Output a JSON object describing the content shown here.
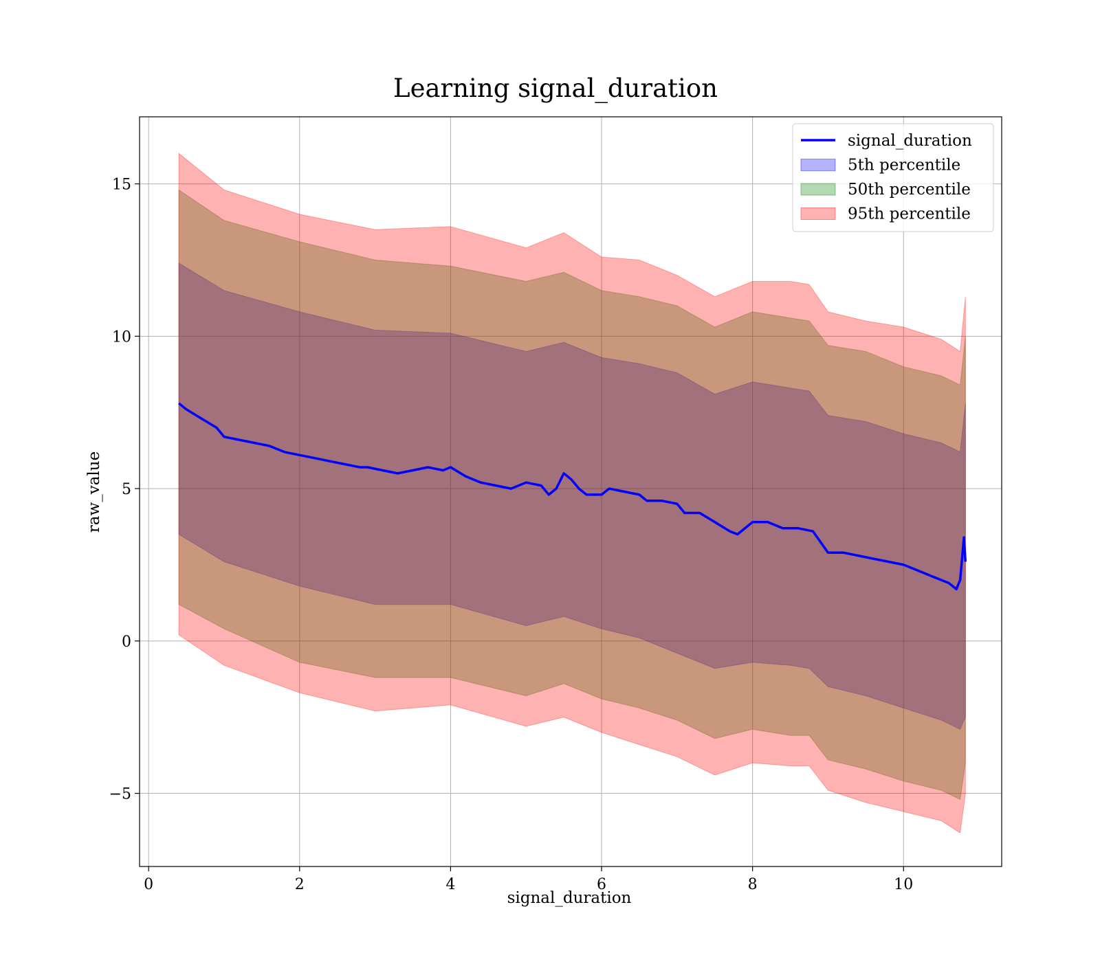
{
  "chart_data": {
    "type": "line",
    "title": "Learning signal_duration",
    "xlabel": "signal_duration",
    "ylabel": "raw_value",
    "xlim": [
      -0.12,
      11.3
    ],
    "ylim": [
      -7.4,
      17.2
    ],
    "xticks": [
      0,
      2,
      4,
      6,
      8,
      10
    ],
    "xtick_labels": [
      "0",
      "2",
      "4",
      "6",
      "8",
      "10"
    ],
    "yticks": [
      -5,
      0,
      5,
      10,
      15
    ],
    "ytick_labels": [
      "−5",
      "0",
      "5",
      "10",
      "15"
    ],
    "grid": true,
    "legend_position": "upper right",
    "colors": {
      "line": "#0000ff",
      "band_5": "#0000ff",
      "band_50": "#008000",
      "band_95": "#ff0000"
    },
    "band_alpha": 0.3,
    "series": [
      {
        "name": "signal_duration",
        "kind": "line",
        "x": [
          0.4,
          0.5,
          0.7,
          0.9,
          1.0,
          1.2,
          1.4,
          1.6,
          1.8,
          2.0,
          2.2,
          2.4,
          2.6,
          2.8,
          2.9,
          3.1,
          3.3,
          3.5,
          3.7,
          3.9,
          4.0,
          4.2,
          4.4,
          4.6,
          4.8,
          5.0,
          5.2,
          5.3,
          5.4,
          5.5,
          5.6,
          5.7,
          5.8,
          6.0,
          6.1,
          6.3,
          6.5,
          6.6,
          6.8,
          7.0,
          7.1,
          7.3,
          7.5,
          7.7,
          7.8,
          8.0,
          8.2,
          8.4,
          8.6,
          8.8,
          9.0,
          9.2,
          9.4,
          9.6,
          9.8,
          10.0,
          10.2,
          10.4,
          10.6,
          10.7,
          10.75,
          10.8,
          10.82
        ],
        "y": [
          7.8,
          7.6,
          7.3,
          7.0,
          6.7,
          6.6,
          6.5,
          6.4,
          6.2,
          6.1,
          6.0,
          5.9,
          5.8,
          5.7,
          5.7,
          5.6,
          5.5,
          5.6,
          5.7,
          5.6,
          5.7,
          5.4,
          5.2,
          5.1,
          5.0,
          5.2,
          5.1,
          4.8,
          5.0,
          5.5,
          5.3,
          5.0,
          4.8,
          4.8,
          5.0,
          4.9,
          4.8,
          4.6,
          4.6,
          4.5,
          4.2,
          4.2,
          3.9,
          3.6,
          3.5,
          3.9,
          3.9,
          3.7,
          3.7,
          3.6,
          2.9,
          2.9,
          2.8,
          2.7,
          2.6,
          2.5,
          2.3,
          2.1,
          1.9,
          1.7,
          2.0,
          3.4,
          2.6
        ]
      },
      {
        "name": "5th percentile",
        "kind": "band",
        "x": [
          0.4,
          1.0,
          2.0,
          3.0,
          4.0,
          5.0,
          5.5,
          6.0,
          6.5,
          7.0,
          7.5,
          8.0,
          8.5,
          8.75,
          9.0,
          9.5,
          10.0,
          10.5,
          10.75,
          10.82
        ],
        "lower": [
          3.5,
          2.6,
          1.8,
          1.2,
          1.2,
          0.5,
          0.8,
          0.4,
          0.1,
          -0.4,
          -0.9,
          -0.7,
          -0.8,
          -0.9,
          -1.5,
          -1.8,
          -2.2,
          -2.6,
          -2.9,
          -2.5
        ],
        "upper": [
          12.4,
          11.5,
          10.8,
          10.2,
          10.1,
          9.5,
          9.8,
          9.3,
          9.1,
          8.8,
          8.1,
          8.5,
          8.3,
          8.2,
          7.4,
          7.2,
          6.8,
          6.5,
          6.2,
          7.8
        ]
      },
      {
        "name": "50th percentile",
        "kind": "band",
        "x": [
          0.4,
          1.0,
          2.0,
          3.0,
          4.0,
          5.0,
          5.5,
          6.0,
          6.5,
          7.0,
          7.5,
          8.0,
          8.5,
          8.75,
          9.0,
          9.5,
          10.0,
          10.5,
          10.75,
          10.82
        ],
        "lower": [
          1.2,
          0.4,
          -0.7,
          -1.2,
          -1.2,
          -1.8,
          -1.4,
          -1.9,
          -2.2,
          -2.6,
          -3.2,
          -2.9,
          -3.1,
          -3.1,
          -3.9,
          -4.2,
          -4.6,
          -4.9,
          -5.2,
          -4.0
        ],
        "upper": [
          14.8,
          13.8,
          13.1,
          12.5,
          12.3,
          11.8,
          12.1,
          11.5,
          11.3,
          11.0,
          10.3,
          10.8,
          10.6,
          10.5,
          9.7,
          9.5,
          9.0,
          8.7,
          8.4,
          10.0
        ]
      },
      {
        "name": "95th percentile",
        "kind": "band",
        "x": [
          0.4,
          1.0,
          2.0,
          3.0,
          4.0,
          5.0,
          5.5,
          6.0,
          6.5,
          7.0,
          7.5,
          8.0,
          8.5,
          8.75,
          9.0,
          9.5,
          10.0,
          10.5,
          10.75,
          10.82
        ],
        "lower": [
          0.2,
          -0.8,
          -1.7,
          -2.3,
          -2.1,
          -2.8,
          -2.5,
          -3.0,
          -3.4,
          -3.8,
          -4.4,
          -4.0,
          -4.1,
          -4.1,
          -4.9,
          -5.3,
          -5.6,
          -5.9,
          -6.3,
          -5.0
        ],
        "upper": [
          16.0,
          14.8,
          14.0,
          13.5,
          13.6,
          12.9,
          13.4,
          12.6,
          12.5,
          12.0,
          11.3,
          11.8,
          11.8,
          11.7,
          10.8,
          10.5,
          10.3,
          9.9,
          9.5,
          11.3
        ]
      }
    ]
  }
}
